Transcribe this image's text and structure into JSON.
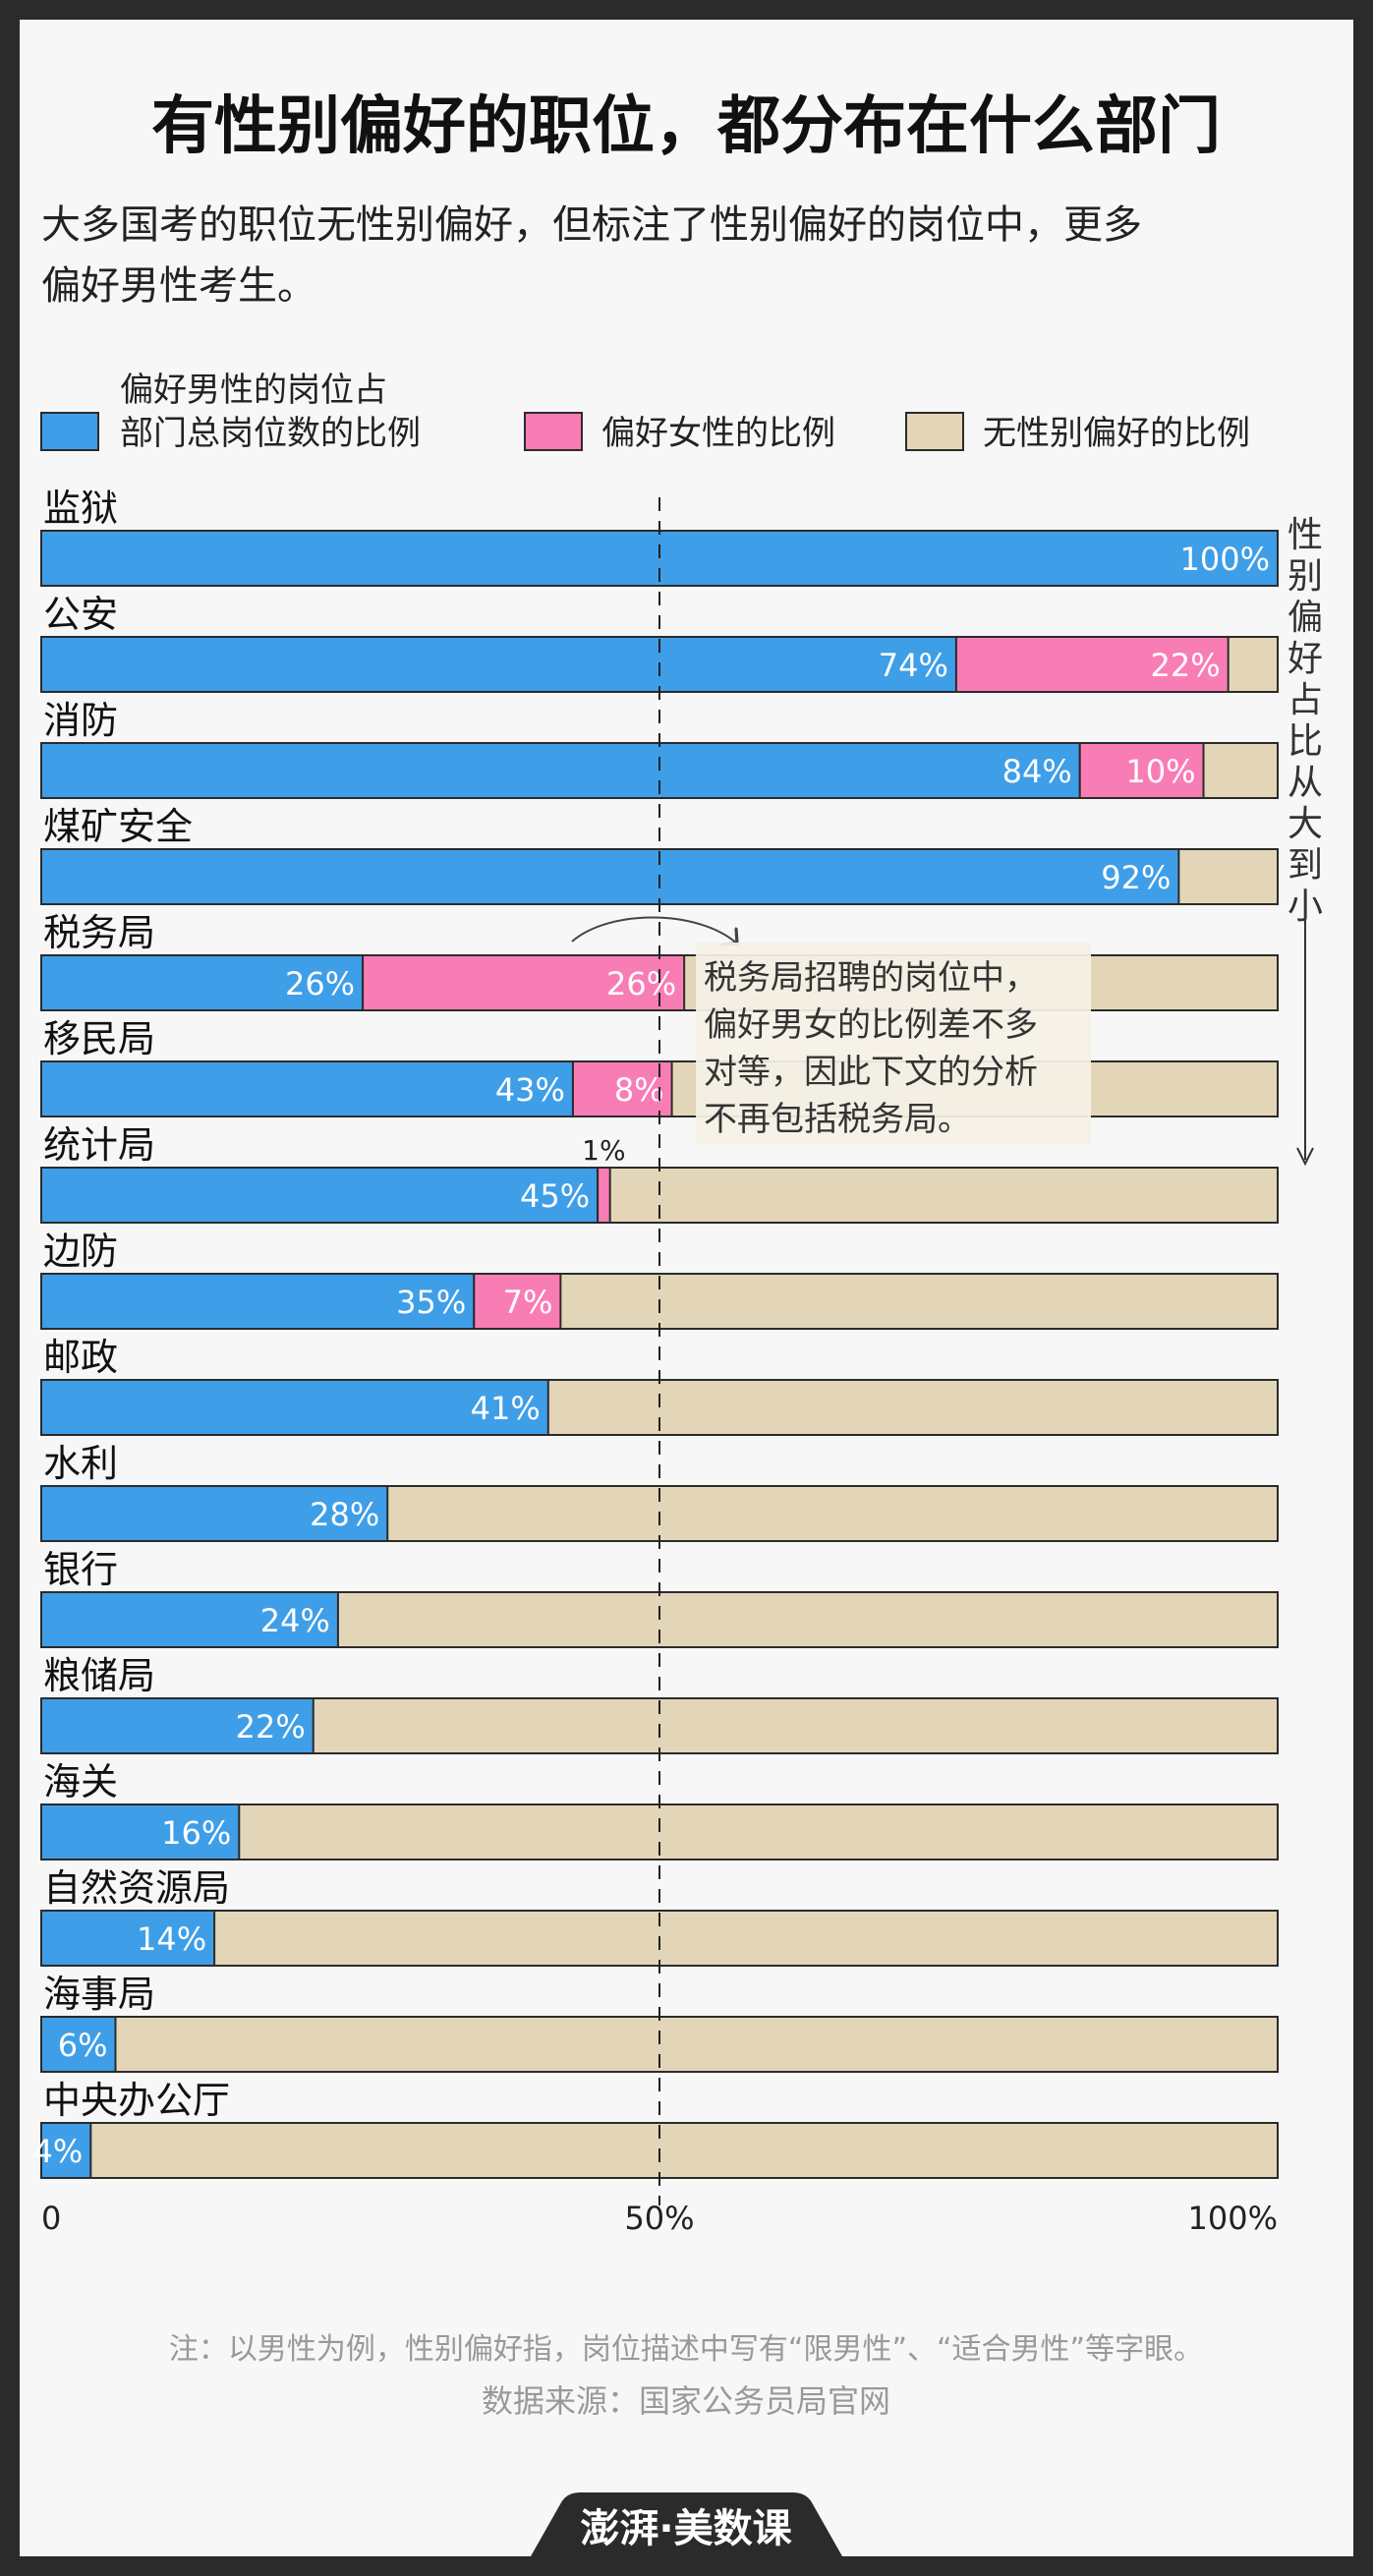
{
  "title": "有性别偏好的职位，都分布在什么部门",
  "subtitle": [
    "大多国考的职位无性别偏好，但标注了性别偏好的岗位中，更多",
    "偏好男性考生。"
  ],
  "legend": {
    "male": [
      "偏好男性的岗位占",
      "部门总岗位数的比例"
    ],
    "female": "偏好女性的比例",
    "none": "无性别偏好的比例"
  },
  "side_note": "性别偏好占比从大到小",
  "annotation": [
    "税务局招聘的岗位中，",
    "偏好男女的比例差不多",
    "对等，因此下文的分析",
    "不再包括税务局。"
  ],
  "footer": {
    "note": "注：以男性为例，性别偏好指，岗位描述中写有“限男性”、“适合男性”等字眼。",
    "source": "数据来源：国家公务员局官网",
    "logo_text": "澎湃·美数课"
  },
  "colors": {
    "male": "#3f9ee8",
    "female": "#f97db5",
    "none": "#e3d6b8",
    "background": "#f7f7f7",
    "border": "#2b2b2b"
  },
  "chart_data": {
    "type": "bar",
    "orientation": "horizontal",
    "stacked": true,
    "categories": [
      "监狱",
      "公安",
      "消防",
      "煤矿安全",
      "税务局",
      "移民局",
      "统计局",
      "边防",
      "邮政",
      "水利",
      "银行",
      "粮储局",
      "海关",
      "自然资源局",
      "海事局",
      "中央办公厅"
    ],
    "series": [
      {
        "key": "male",
        "values": [
          100,
          74,
          84,
          92,
          26,
          43,
          45,
          35,
          41,
          28,
          24,
          22,
          16,
          14,
          6,
          4
        ]
      },
      {
        "key": "female",
        "values": [
          0,
          22,
          10,
          0,
          26,
          8,
          1,
          7,
          0,
          0,
          0,
          0,
          0,
          0,
          0,
          0
        ]
      },
      {
        "key": "none",
        "values": [
          0,
          4,
          6,
          8,
          48,
          49,
          54,
          58,
          59,
          72,
          76,
          78,
          84,
          86,
          94,
          96
        ]
      }
    ],
    "data_labels": {
      "male": [
        "100%",
        "74%",
        "84%",
        "92%",
        "26%",
        "43%",
        "45%",
        "35%",
        "41%",
        "28%",
        "24%",
        "22%",
        "16%",
        "14%",
        "6%",
        "4%"
      ],
      "female": [
        "",
        "22%",
        "10%",
        "",
        "26%",
        "8%",
        "1%",
        "7%",
        "",
        "",
        "",
        "",
        "",
        "",
        "",
        ""
      ]
    },
    "xlim": [
      0,
      100
    ],
    "x_ticks": [
      "0",
      "50%",
      "100%"
    ],
    "reference_line": 50,
    "grid": false
  }
}
